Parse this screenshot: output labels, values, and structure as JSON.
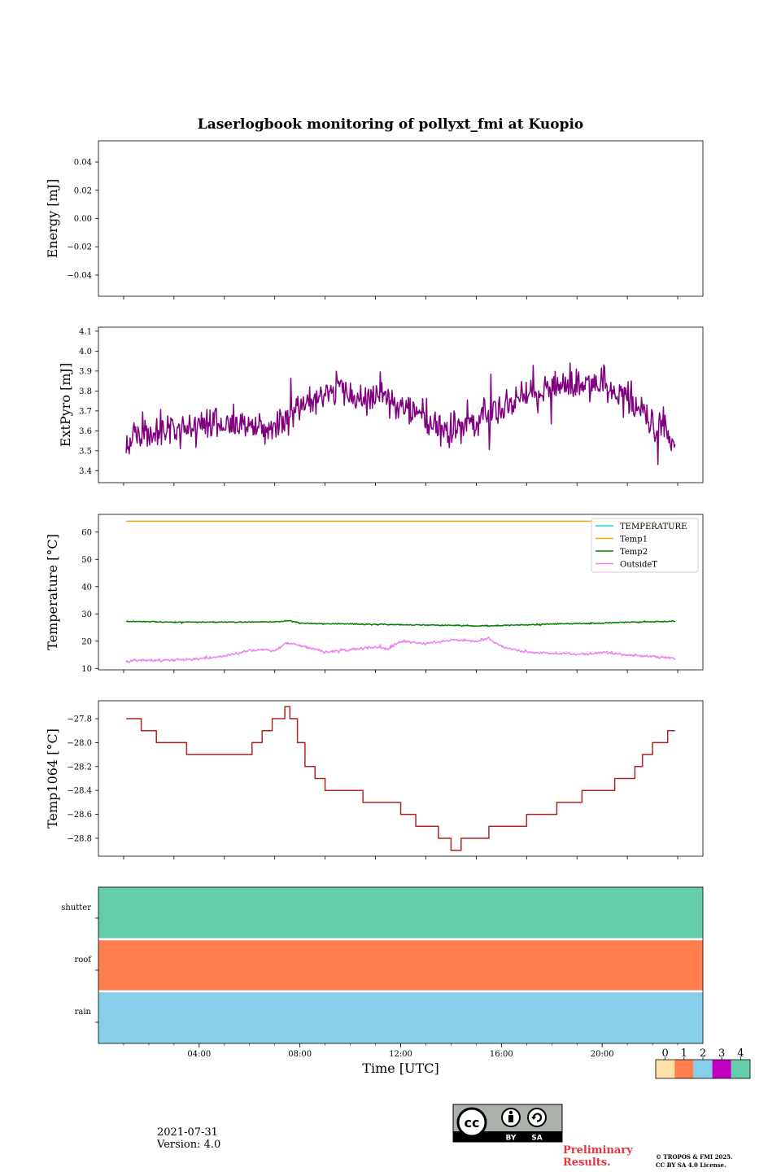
{
  "figure_title": "Laserlogbook monitoring of pollyxt_fmi at Kuopio",
  "footer": {
    "date": "2021-07-31",
    "version": "Version: 4.0",
    "preliminary": "Preliminary Results.",
    "copyright_line1": "© TROPOS & FMI 2025.",
    "copyright_line2": "CC BY SA 4.0 License.",
    "license_badge": {
      "cc": "cc",
      "by": "BY",
      "sa": "SA"
    }
  },
  "colors": {
    "energy": "#000000",
    "extpyro": "#800080",
    "temperature": "#00e5ee",
    "temp1": "#ffa500",
    "temp2": "#008000",
    "outsideT": "#ee82ee",
    "temp1064": "#b22222",
    "status_0": "#fde0a8",
    "status_1": "#ff7f50",
    "status_2": "#87ceeb",
    "status_3": "#c000c0",
    "status_4": "#66cdaa"
  },
  "chart_data": [
    {
      "type": "line",
      "id": "energy",
      "ylabel": "Energy [mJ]",
      "ylim": [
        -0.055,
        0.055
      ],
      "yticks": [
        0.04,
        0.02,
        0.0,
        -0.02,
        -0.04
      ],
      "ytick_labels": [
        "0.04",
        "0.02",
        "0.00",
        "−0.02",
        "−0.04"
      ],
      "series": []
    },
    {
      "type": "line",
      "id": "extpyro",
      "ylabel": "ExtPyro [mJ]",
      "ylim": [
        3.34,
        4.12
      ],
      "yticks": [
        3.4,
        3.5,
        3.6,
        3.7,
        3.8,
        3.9,
        4.0,
        4.1
      ],
      "ytick_labels": [
        "3.4",
        "3.5",
        "3.6",
        "3.7",
        "3.8",
        "3.9",
        "4.0",
        "4.1"
      ],
      "series": [
        {
          "name": "ExtPyro",
          "color": "#800080",
          "x": [
            1.1,
            1.5,
            2,
            3,
            4,
            5,
            6,
            7,
            7.5,
            8,
            8.5,
            9,
            9.5,
            10,
            10.5,
            11,
            11.5,
            12,
            12.5,
            13,
            13.5,
            14,
            14.5,
            15,
            15.5,
            16,
            16.5,
            17,
            17.5,
            18,
            18.5,
            19,
            19.5,
            20,
            20.5,
            21,
            21.5,
            22,
            22.5,
            22.9
          ],
          "y": [
            3.55,
            3.56,
            3.58,
            3.6,
            3.62,
            3.63,
            3.62,
            3.62,
            3.63,
            3.75,
            3.77,
            3.8,
            3.82,
            3.78,
            3.75,
            3.78,
            3.76,
            3.72,
            3.7,
            3.67,
            3.6,
            3.6,
            3.62,
            3.67,
            3.68,
            3.7,
            3.76,
            3.78,
            3.8,
            3.82,
            3.83,
            3.82,
            3.84,
            3.86,
            3.8,
            3.76,
            3.7,
            3.64,
            3.62,
            3.5
          ],
          "noise": 0.06,
          "seed": 11
        }
      ]
    },
    {
      "type": "line",
      "id": "temperature",
      "ylabel": "Temperature [°C]",
      "ylim": [
        9.5,
        66.5
      ],
      "yticks": [
        10,
        20,
        30,
        40,
        50,
        60
      ],
      "ytick_labels": [
        "10",
        "20",
        "30",
        "40",
        "50",
        "60"
      ],
      "legend": {
        "placement": "top-right",
        "entries": [
          "TEMPERATURE",
          "Temp1",
          "Temp2",
          "OutsideT"
        ]
      },
      "series": [
        {
          "name": "TEMPERATURE",
          "color": "#00e5ee",
          "x": [],
          "y": []
        },
        {
          "name": "Temp1",
          "color": "#ffa500",
          "x": [
            1.1,
            22.9
          ],
          "y": [
            64,
            64
          ]
        },
        {
          "name": "Temp2",
          "color": "#008000",
          "x": [
            1.1,
            3,
            5,
            7,
            7.6,
            8,
            9,
            10,
            11,
            12,
            13,
            14,
            15,
            16,
            17,
            18,
            19,
            20,
            21,
            22,
            22.9
          ],
          "y": [
            27.3,
            27.0,
            27.0,
            27.1,
            27.5,
            26.6,
            26.4,
            26.3,
            26.2,
            26.0,
            25.9,
            25.8,
            25.6,
            25.8,
            26.0,
            26.3,
            26.4,
            26.6,
            27.0,
            27.1,
            27.3
          ],
          "noise": 0.15,
          "seed": 5
        },
        {
          "name": "OutsideT",
          "color": "#ee82ee",
          "x": [
            1.1,
            1.5,
            3,
            4,
            5,
            6,
            6.5,
            7,
            7.5,
            8,
            9,
            10,
            11,
            11.5,
            12,
            13,
            14,
            15,
            15.5,
            16,
            17,
            18,
            19,
            20,
            21,
            22,
            22.9
          ],
          "y": [
            12.5,
            13,
            13,
            13.5,
            14.5,
            16.5,
            17,
            16.5,
            19.5,
            18.5,
            16,
            17,
            18,
            17,
            20,
            19,
            20.5,
            20,
            21,
            18,
            16,
            15.5,
            15.2,
            15.8,
            15.0,
            14.5,
            13.8
          ],
          "noise": 0.35,
          "seed": 9
        }
      ]
    },
    {
      "type": "line",
      "id": "temp1064",
      "ylabel": "Temp1064 [°C]",
      "ylim": [
        -28.95,
        -27.65
      ],
      "yticks": [
        -27.8,
        -28.0,
        -28.2,
        -28.4,
        -28.6,
        -28.8
      ],
      "ytick_labels": [
        "−27.8",
        "−28.0",
        "−28.2",
        "−28.4",
        "−28.6",
        "−28.8"
      ],
      "series": [
        {
          "name": "Temp1064",
          "color": "#b22222",
          "steps": [
            [
              1.1,
              -27.8
            ],
            [
              1.5,
              -27.8
            ],
            [
              1.7,
              -27.9
            ],
            [
              2.3,
              -28.0
            ],
            [
              3.2,
              -28.0
            ],
            [
              3.5,
              -28.1
            ],
            [
              4.5,
              -28.1
            ],
            [
              6.1,
              -28.0
            ],
            [
              6.5,
              -27.9
            ],
            [
              6.9,
              -27.8
            ],
            [
              7.4,
              -27.7
            ],
            [
              7.6,
              -27.8
            ],
            [
              7.9,
              -28.0
            ],
            [
              8.2,
              -28.2
            ],
            [
              8.6,
              -28.3
            ],
            [
              9.0,
              -28.4
            ],
            [
              10.5,
              -28.5
            ],
            [
              12.0,
              -28.6
            ],
            [
              12.6,
              -28.7
            ],
            [
              13.5,
              -28.8
            ],
            [
              14.0,
              -28.9
            ],
            [
              14.4,
              -28.8
            ],
            [
              15.5,
              -28.7
            ],
            [
              17.0,
              -28.6
            ],
            [
              18.2,
              -28.5
            ],
            [
              19.2,
              -28.4
            ],
            [
              20.5,
              -28.3
            ],
            [
              21.3,
              -28.2
            ],
            [
              21.6,
              -28.1
            ],
            [
              22.0,
              -28.0
            ],
            [
              22.6,
              -27.9
            ],
            [
              22.9,
              -27.9
            ]
          ]
        }
      ]
    },
    {
      "type": "heatmap",
      "id": "status",
      "rows": [
        "shutter",
        "roof",
        "rain"
      ],
      "row_values": [
        4,
        1,
        2
      ],
      "xlabel": "Time [UTC]",
      "xlim": [
        0,
        24
      ],
      "xticks": [
        4,
        8,
        12,
        16,
        20
      ],
      "xtick_labels": [
        "04:00",
        "08:00",
        "12:00",
        "16:00",
        "20:00"
      ],
      "colorbar": {
        "ticks": [
          "0",
          "1",
          "2",
          "3",
          "4"
        ]
      }
    }
  ]
}
